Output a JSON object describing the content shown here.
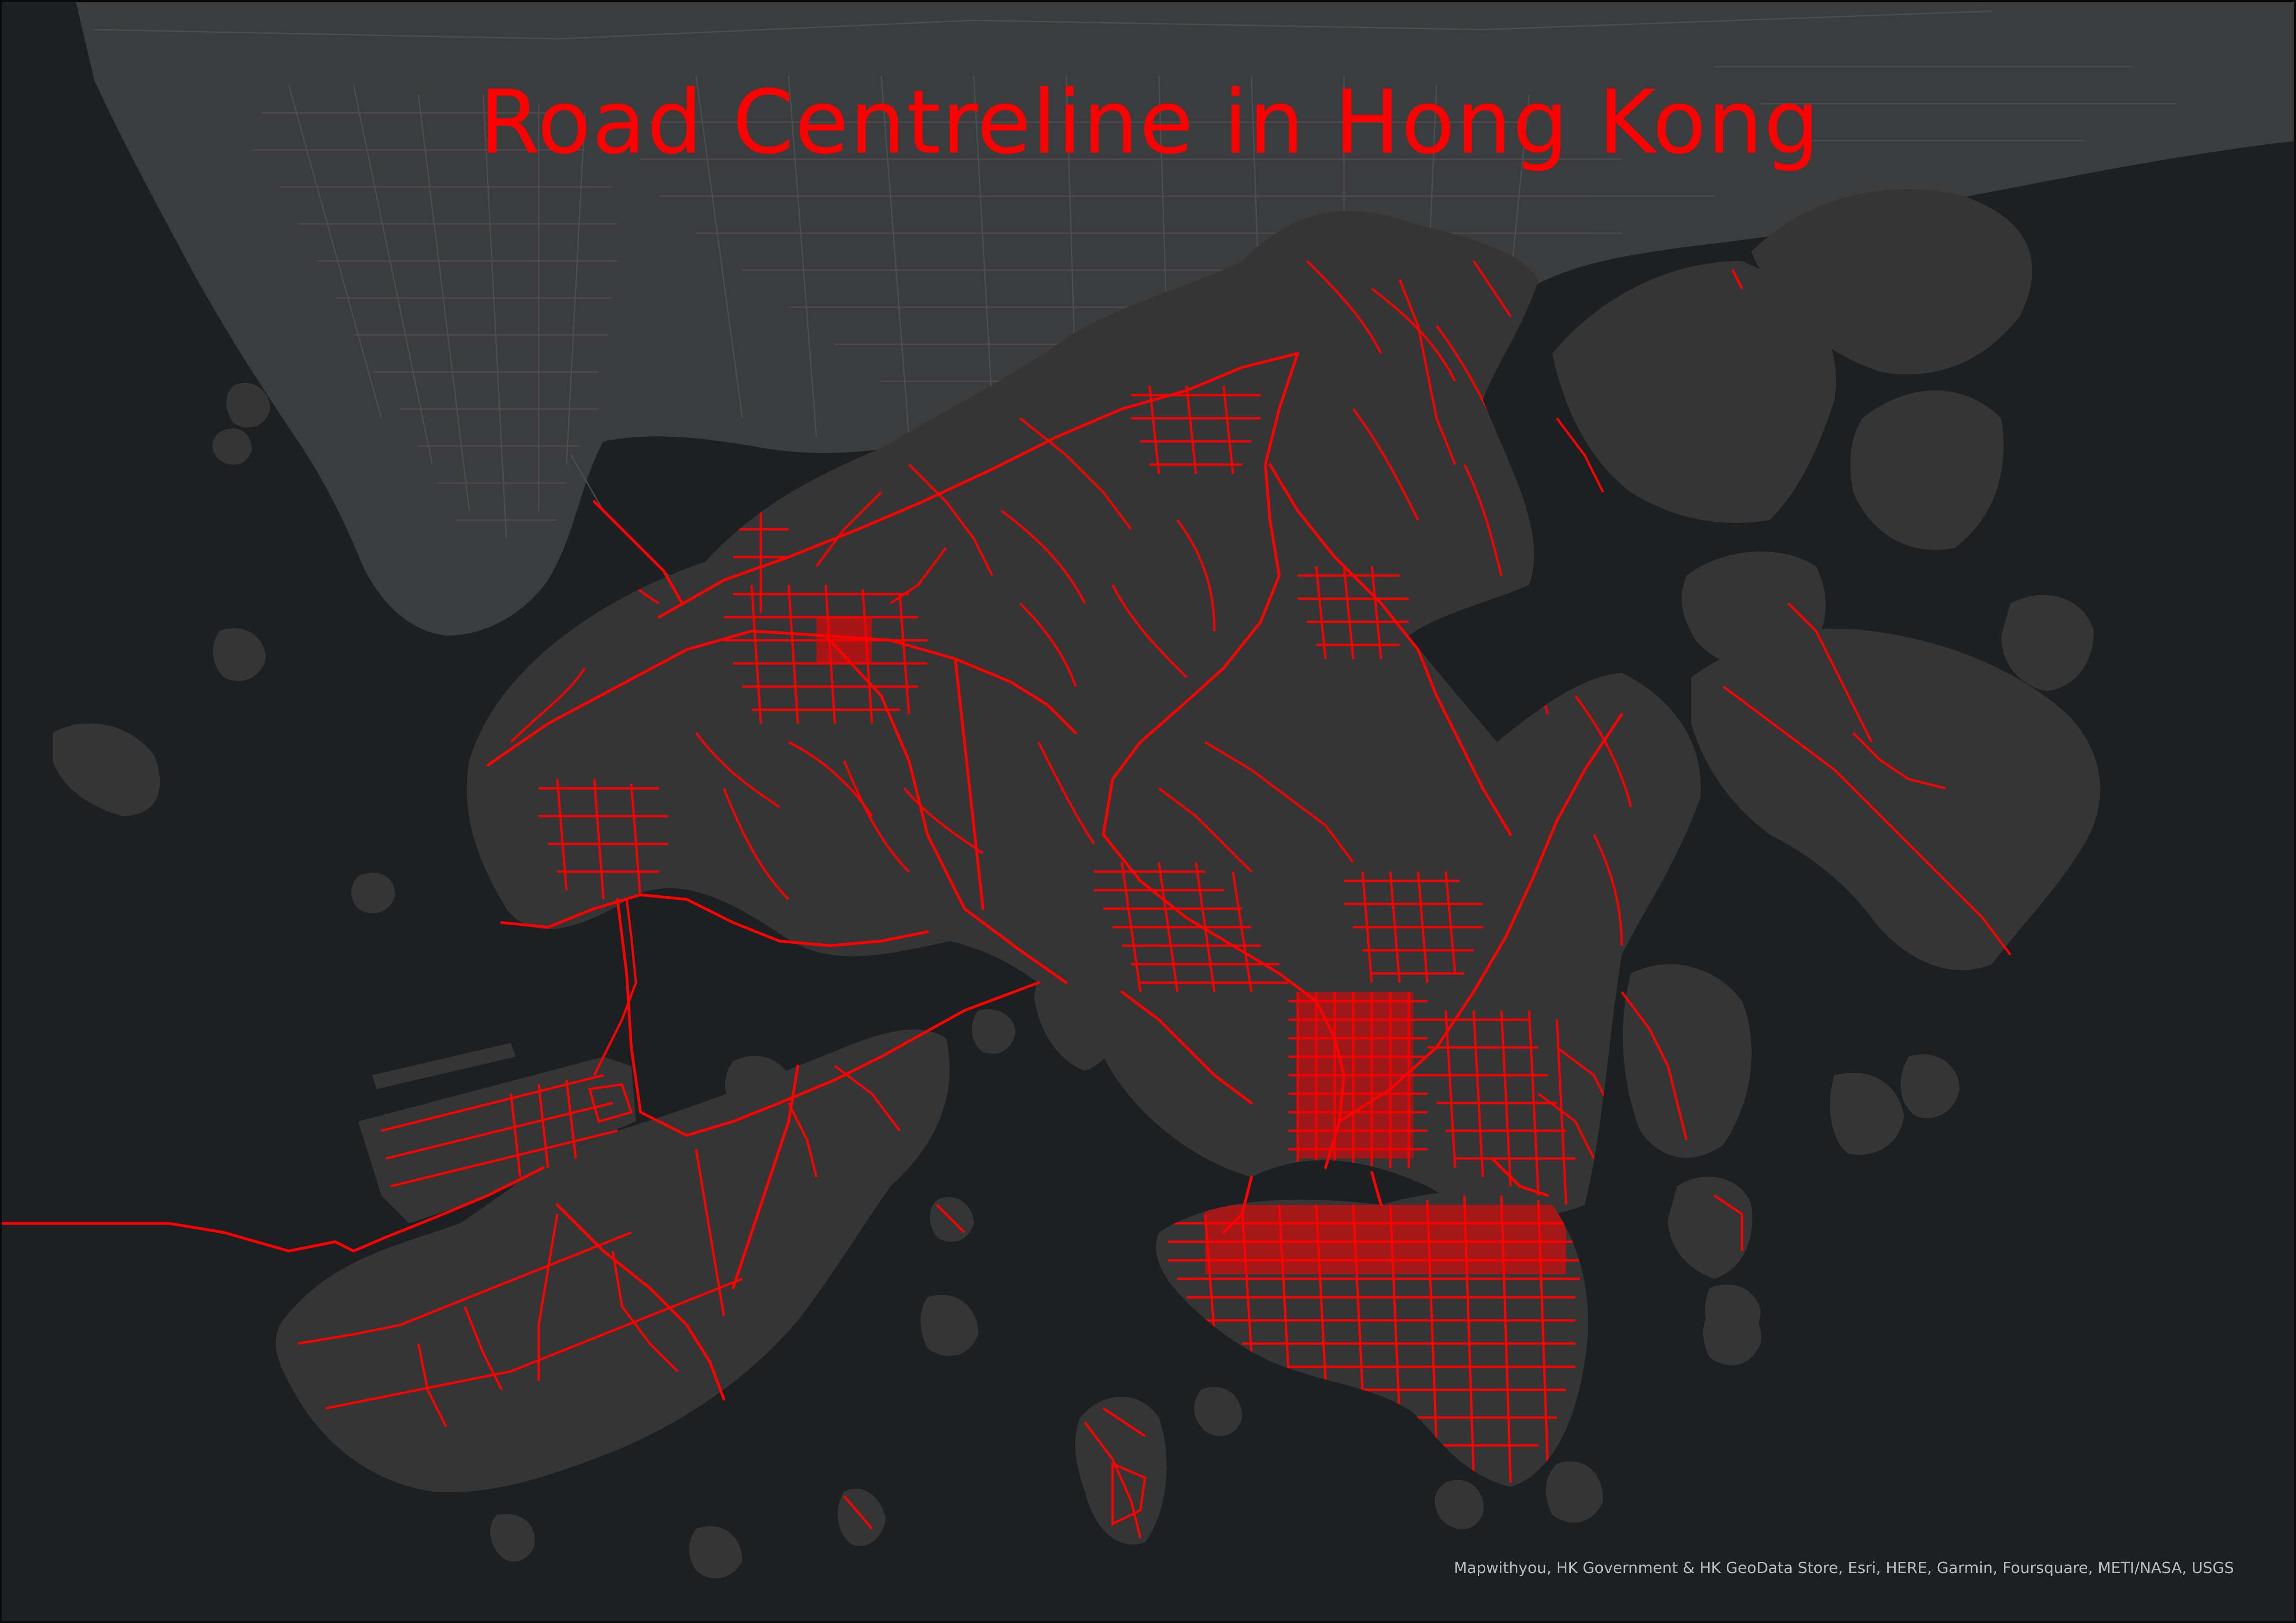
{
  "map": {
    "title": "Road Centreline in Hong Kong",
    "attribution": "Mapwithyou, HK Government & HK GeoData Store, Esri, HERE, Garmin, Foursquare, METI/NASA, USGS",
    "basemap": "dark gray canvas",
    "layer": "road centreline",
    "colors": {
      "water": "#1d2023",
      "land": "#353535",
      "mainland_land": "#3b3c3d",
      "mainland_streets": "#4f5152",
      "roads": "#ff0000",
      "title": "#ff0000",
      "attribution": "#bdbdbd"
    }
  }
}
